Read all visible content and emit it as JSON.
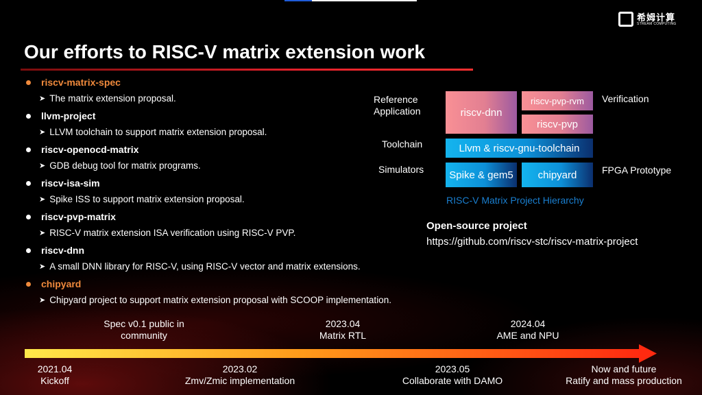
{
  "logo": {
    "cn": "希姆计算",
    "en": "STREAM COMPUTING"
  },
  "title": "Our efforts to RISC-V matrix extension work",
  "items": [
    {
      "name": "riscv-matrix-spec",
      "desc": "The matrix extension proposal.",
      "highlight": true
    },
    {
      "name": "llvm-project",
      "desc": "LLVM toolchain to support matrix extension proposal.",
      "highlight": false
    },
    {
      "name": "riscv-openocd-matrix",
      "desc": "GDB debug tool for matrix programs.",
      "highlight": false
    },
    {
      "name": "riscv-isa-sim",
      "desc": "Spike ISS to support matrix extension proposal.",
      "highlight": false
    },
    {
      "name": "riscv-pvp-matrix",
      "desc": "RISC-V matrix extension ISA verification using RISC-V PVP.",
      "highlight": false
    },
    {
      "name": "riscv-dnn",
      "desc": "A small DNN library for RISC-V, using RISC-V vector and matrix extensions.",
      "highlight": false
    },
    {
      "name": "chipyard",
      "desc": "Chipyard project to support matrix extension proposal with SCOOP implementation.",
      "highlight": true
    }
  ],
  "hierarchy": {
    "labels": {
      "ref_app": "Reference\nApplication",
      "toolchain": "Toolchain",
      "simulators": "Simulators",
      "verification": "Verification",
      "fpga": "FPGA Prototype"
    },
    "boxes": {
      "dnn": "riscv-dnn",
      "pvp_rvm": "riscv-pvp-rvm",
      "pvp": "riscv-pvp",
      "toolchain": "Llvm & riscv-gnu-toolchain",
      "spike": "Spike & gem5",
      "chipyard": "chipyard"
    },
    "caption": "RISC-V Matrix Project Hierarchy"
  },
  "opensource": {
    "heading": "Open-source project",
    "url": "https://github.com/riscv-stc/riscv-matrix-project"
  },
  "timeline": {
    "above": [
      {
        "t": "Spec v0.1 public in\ncommunity"
      },
      {
        "t": "2023.04\nMatrix RTL"
      },
      {
        "t": "2024.04\nAME and NPU"
      }
    ],
    "below": [
      {
        "t": "2021.04\nKickoff"
      },
      {
        "t": "2023.02\nZmv/Zmic implementation"
      },
      {
        "t": "2023.05\nCollaborate with DAMO"
      },
      {
        "t": "Now and future\nRatify and mass production"
      }
    ]
  },
  "colors": {
    "accent": "#f08a3c",
    "caption": "#1a7fd0"
  }
}
